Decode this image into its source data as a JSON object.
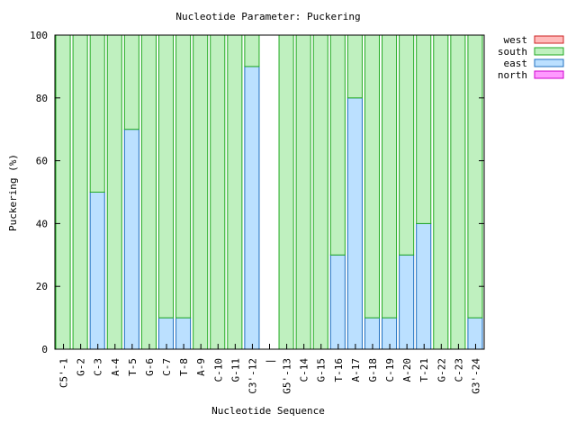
{
  "chart_data": {
    "type": "bar",
    "stacked": true,
    "title": "Nucleotide Parameter: Puckering",
    "xlabel": "Nucleotide Sequence",
    "ylabel": "Puckering (%)",
    "ylim": [
      0,
      100
    ],
    "yticks": [
      0,
      20,
      40,
      60,
      80,
      100
    ],
    "grid": false,
    "legend_position": "top-right, outside plot",
    "categories": [
      "C5'-1",
      "G-2",
      "C-3",
      "A-4",
      "T-5",
      "G-6",
      "C-7",
      "T-8",
      "A-9",
      "C-10",
      "G-11",
      "C3'-12",
      "|",
      "G5'-13",
      "C-14",
      "G-15",
      "T-16",
      "A-17",
      "G-18",
      "C-19",
      "A-20",
      "T-21",
      "G-22",
      "C-23",
      "G3'-24"
    ],
    "series": [
      {
        "name": "north",
        "color": "#ff99ff",
        "edge": "#cc00cc",
        "values": [
          0,
          0,
          0,
          0,
          0,
          0,
          0,
          0,
          0,
          0,
          0,
          0,
          null,
          0,
          0,
          0,
          0,
          0,
          0,
          0,
          0,
          0,
          0,
          0,
          0
        ]
      },
      {
        "name": "east",
        "color": "#bbe0ff",
        "edge": "#1f6fbf",
        "values": [
          0,
          0,
          50,
          0,
          70,
          0,
          10,
          10,
          0,
          0,
          0,
          90,
          null,
          0,
          0,
          0,
          30,
          80,
          10,
          10,
          30,
          40,
          0,
          0,
          10
        ]
      },
      {
        "name": "south",
        "color": "#bff0bf",
        "edge": "#22aa22",
        "values": [
          100,
          100,
          50,
          100,
          30,
          100,
          90,
          90,
          100,
          100,
          100,
          10,
          null,
          100,
          100,
          100,
          70,
          20,
          90,
          90,
          70,
          60,
          100,
          100,
          90
        ]
      },
      {
        "name": "west",
        "color": "#ffbbbb",
        "edge": "#cc2222",
        "values": [
          0,
          0,
          0,
          0,
          0,
          0,
          0,
          0,
          0,
          0,
          0,
          0,
          null,
          0,
          0,
          0,
          0,
          0,
          0,
          0,
          0,
          0,
          0,
          0,
          0
        ]
      }
    ],
    "legend_order": [
      "west",
      "south",
      "east",
      "north"
    ]
  }
}
